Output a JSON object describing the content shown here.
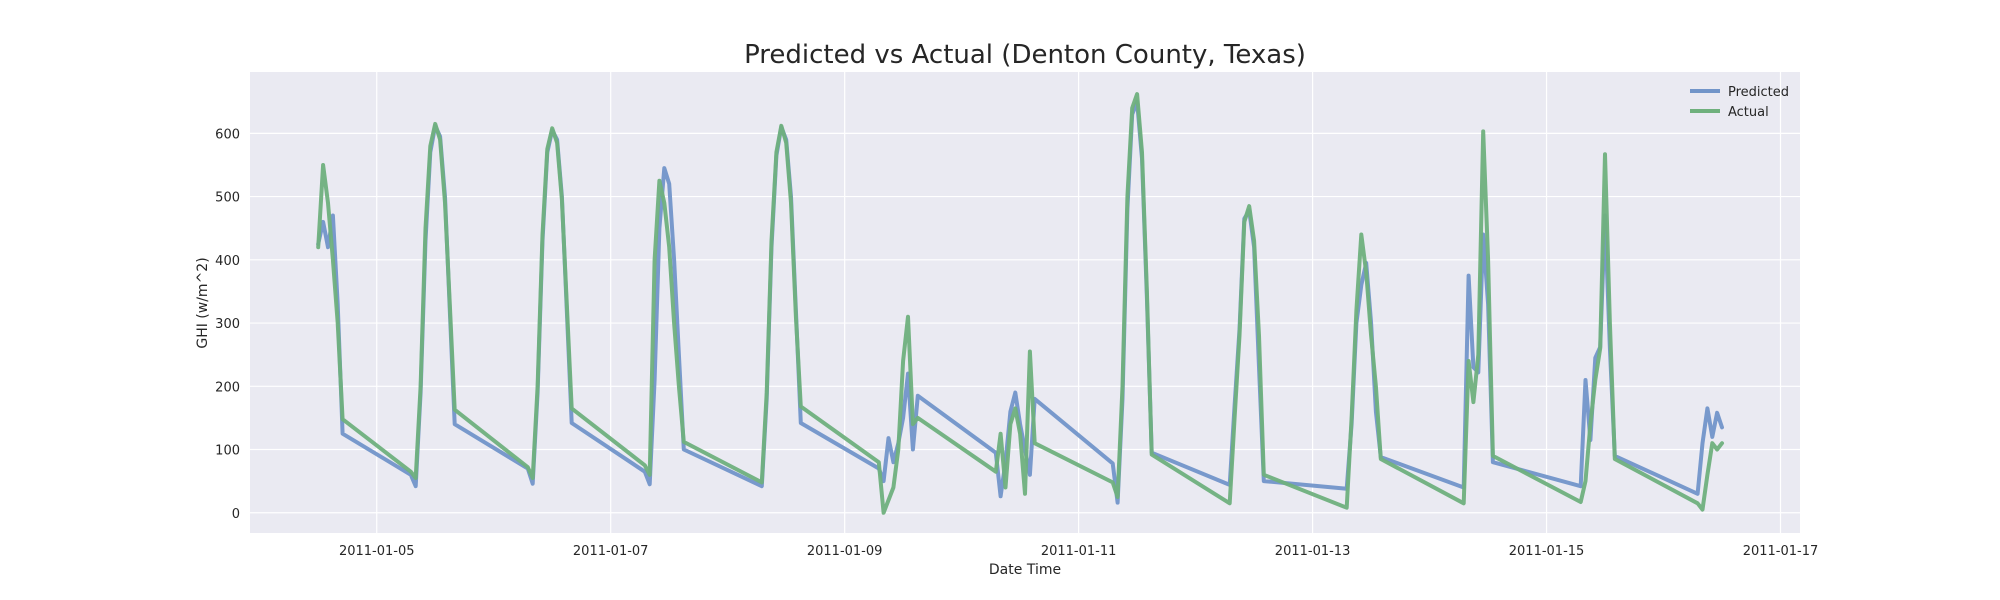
{
  "chart_data": {
    "type": "line",
    "title": "Predicted vs Actual (Denton County, Texas)",
    "xlabel": "Date Time",
    "ylabel": "GHI (w/m^2)",
    "xlim": [
      "2011-01-03 22:00",
      "2011-01-17 04:00"
    ],
    "ylim": [
      -32,
      697
    ],
    "x_ticks": [
      "2011-01-05",
      "2011-01-07",
      "2011-01-09",
      "2011-01-11",
      "2011-01-13",
      "2011-01-15",
      "2011-01-17"
    ],
    "y_ticks": [
      0,
      100,
      200,
      300,
      400,
      500,
      600
    ],
    "grid": true,
    "legend_position": "top-right",
    "series": [
      {
        "name": "Predicted",
        "color": "#7295c9",
        "points": [
          [
            "2011-01-04 12:00",
            425
          ],
          [
            "2011-01-04 13:00",
            460
          ],
          [
            "2011-01-04 14:00",
            420
          ],
          [
            "2011-01-04 15:00",
            470
          ],
          [
            "2011-01-04 16:00",
            330
          ],
          [
            "2011-01-04 17:00",
            125
          ],
          [
            "2011-01-05 07:00",
            60
          ],
          [
            "2011-01-05 08:00",
            42
          ],
          [
            "2011-01-05 09:00",
            190
          ],
          [
            "2011-01-05 10:00",
            430
          ],
          [
            "2011-01-05 11:00",
            570
          ],
          [
            "2011-01-05 12:00",
            612
          ],
          [
            "2011-01-05 13:00",
            595
          ],
          [
            "2011-01-05 14:00",
            500
          ],
          [
            "2011-01-05 15:00",
            320
          ],
          [
            "2011-01-05 16:00",
            140
          ],
          [
            "2011-01-06 07:00",
            70
          ],
          [
            "2011-01-06 08:00",
            46
          ],
          [
            "2011-01-06 09:00",
            190
          ],
          [
            "2011-01-06 10:00",
            430
          ],
          [
            "2011-01-06 11:00",
            570
          ],
          [
            "2011-01-06 12:00",
            605
          ],
          [
            "2011-01-06 13:00",
            590
          ],
          [
            "2011-01-06 14:00",
            500
          ],
          [
            "2011-01-06 15:00",
            320
          ],
          [
            "2011-01-06 16:00",
            142
          ],
          [
            "2011-01-07 07:00",
            65
          ],
          [
            "2011-01-07 08:00",
            45
          ],
          [
            "2011-01-07 09:00",
            210
          ],
          [
            "2011-01-07 10:00",
            450
          ],
          [
            "2011-01-07 11:00",
            545
          ],
          [
            "2011-01-07 12:00",
            520
          ],
          [
            "2011-01-07 13:00",
            400
          ],
          [
            "2011-01-07 14:00",
            250
          ],
          [
            "2011-01-07 15:00",
            100
          ],
          [
            "2011-01-08 07:00",
            42
          ],
          [
            "2011-01-08 08:00",
            180
          ],
          [
            "2011-01-08 09:00",
            420
          ],
          [
            "2011-01-08 10:00",
            565
          ],
          [
            "2011-01-08 11:00",
            610
          ],
          [
            "2011-01-08 12:00",
            590
          ],
          [
            "2011-01-08 13:00",
            500
          ],
          [
            "2011-01-08 14:00",
            320
          ],
          [
            "2011-01-08 15:00",
            142
          ],
          [
            "2011-01-09 07:00",
            70
          ],
          [
            "2011-01-09 08:00",
            50
          ],
          [
            "2011-01-09 09:00",
            118
          ],
          [
            "2011-01-09 10:00",
            80
          ],
          [
            "2011-01-09 11:00",
            110
          ],
          [
            "2011-01-09 12:00",
            150
          ],
          [
            "2011-01-09 13:00",
            220
          ],
          [
            "2011-01-09 14:00",
            100
          ],
          [
            "2011-01-09 15:00",
            185
          ],
          [
            "2011-01-10 07:00",
            95
          ],
          [
            "2011-01-10 08:00",
            26
          ],
          [
            "2011-01-10 09:00",
            80
          ],
          [
            "2011-01-10 10:00",
            160
          ],
          [
            "2011-01-10 11:00",
            190
          ],
          [
            "2011-01-10 12:00",
            140
          ],
          [
            "2011-01-10 13:00",
            100
          ],
          [
            "2011-01-10 14:00",
            60
          ],
          [
            "2011-01-10 15:00",
            180
          ],
          [
            "2011-01-11 07:00",
            78
          ],
          [
            "2011-01-11 08:00",
            16
          ],
          [
            "2011-01-11 09:00",
            180
          ],
          [
            "2011-01-11 10:00",
            480
          ],
          [
            "2011-01-11 11:00",
            630
          ],
          [
            "2011-01-11 12:00",
            650
          ],
          [
            "2011-01-11 13:00",
            560
          ],
          [
            "2011-01-11 14:00",
            340
          ],
          [
            "2011-01-11 15:00",
            95
          ],
          [
            "2011-01-12 07:00",
            44
          ],
          [
            "2011-01-12 08:00",
            170
          ],
          [
            "2011-01-12 09:00",
            290
          ],
          [
            "2011-01-12 10:00",
            465
          ],
          [
            "2011-01-12 11:00",
            478
          ],
          [
            "2011-01-12 12:00",
            420
          ],
          [
            "2011-01-12 13:00",
            230
          ],
          [
            "2011-01-12 14:00",
            50
          ],
          [
            "2011-01-13 07:00",
            38
          ],
          [
            "2011-01-13 08:00",
            140
          ],
          [
            "2011-01-13 09:00",
            300
          ],
          [
            "2011-01-13 10:00",
            360
          ],
          [
            "2011-01-13 11:00",
            395
          ],
          [
            "2011-01-13 12:00",
            300
          ],
          [
            "2011-01-13 13:00",
            160
          ],
          [
            "2011-01-13 14:00",
            88
          ],
          [
            "2011-01-14 07:00",
            40
          ],
          [
            "2011-01-14 08:00",
            375
          ],
          [
            "2011-01-14 09:00",
            230
          ],
          [
            "2011-01-14 10:00",
            222
          ],
          [
            "2011-01-14 11:00",
            440
          ],
          [
            "2011-01-14 12:00",
            330
          ],
          [
            "2011-01-14 13:00",
            80
          ],
          [
            "2011-01-15 07:00",
            42
          ],
          [
            "2011-01-15 08:00",
            210
          ],
          [
            "2011-01-15 09:00",
            115
          ],
          [
            "2011-01-15 10:00",
            245
          ],
          [
            "2011-01-15 11:00",
            262
          ],
          [
            "2011-01-15 12:00",
            470
          ],
          [
            "2011-01-15 13:00",
            260
          ],
          [
            "2011-01-15 14:00",
            90
          ],
          [
            "2011-01-16 07:00",
            30
          ],
          [
            "2011-01-16 08:00",
            110
          ],
          [
            "2011-01-16 09:00",
            165
          ],
          [
            "2011-01-16 10:00",
            120
          ],
          [
            "2011-01-16 11:00",
            158
          ],
          [
            "2011-01-16 12:00",
            135
          ]
        ]
      },
      {
        "name": "Actual",
        "color": "#6fb07d",
        "points": [
          [
            "2011-01-04 12:00",
            420
          ],
          [
            "2011-01-04 13:00",
            550
          ],
          [
            "2011-01-04 14:00",
            490
          ],
          [
            "2011-01-04 15:00",
            400
          ],
          [
            "2011-01-04 16:00",
            300
          ],
          [
            "2011-01-04 17:00",
            148
          ],
          [
            "2011-01-05 07:00",
            65
          ],
          [
            "2011-01-05 08:00",
            55
          ],
          [
            "2011-01-05 09:00",
            200
          ],
          [
            "2011-01-05 10:00",
            450
          ],
          [
            "2011-01-05 11:00",
            580
          ],
          [
            "2011-01-05 12:00",
            615
          ],
          [
            "2011-01-05 13:00",
            590
          ],
          [
            "2011-01-05 14:00",
            490
          ],
          [
            "2011-01-05 15:00",
            330
          ],
          [
            "2011-01-05 16:00",
            163
          ],
          [
            "2011-01-06 07:00",
            72
          ],
          [
            "2011-01-06 08:00",
            55
          ],
          [
            "2011-01-06 09:00",
            200
          ],
          [
            "2011-01-06 10:00",
            440
          ],
          [
            "2011-01-06 11:00",
            575
          ],
          [
            "2011-01-06 12:00",
            608
          ],
          [
            "2011-01-06 13:00",
            585
          ],
          [
            "2011-01-06 14:00",
            495
          ],
          [
            "2011-01-06 15:00",
            330
          ],
          [
            "2011-01-06 16:00",
            165
          ],
          [
            "2011-01-07 07:00",
            75
          ],
          [
            "2011-01-07 08:00",
            60
          ],
          [
            "2011-01-07 09:00",
            400
          ],
          [
            "2011-01-07 10:00",
            525
          ],
          [
            "2011-01-07 11:00",
            490
          ],
          [
            "2011-01-07 12:00",
            420
          ],
          [
            "2011-01-07 13:00",
            300
          ],
          [
            "2011-01-07 14:00",
            200
          ],
          [
            "2011-01-07 15:00",
            112
          ],
          [
            "2011-01-08 07:00",
            48
          ],
          [
            "2011-01-08 08:00",
            190
          ],
          [
            "2011-01-08 09:00",
            430
          ],
          [
            "2011-01-08 10:00",
            570
          ],
          [
            "2011-01-08 11:00",
            612
          ],
          [
            "2011-01-08 12:00",
            585
          ],
          [
            "2011-01-08 13:00",
            490
          ],
          [
            "2011-01-08 14:00",
            310
          ],
          [
            "2011-01-08 15:00",
            168
          ],
          [
            "2011-01-09 07:00",
            80
          ],
          [
            "2011-01-09 08:00",
            0
          ],
          [
            "2011-01-09 09:00",
            20
          ],
          [
            "2011-01-09 10:00",
            40
          ],
          [
            "2011-01-09 11:00",
            100
          ],
          [
            "2011-01-09 12:00",
            240
          ],
          [
            "2011-01-09 13:00",
            310
          ],
          [
            "2011-01-09 14:00",
            140
          ],
          [
            "2011-01-09 15:00",
            150
          ],
          [
            "2011-01-10 07:00",
            65
          ],
          [
            "2011-01-10 08:00",
            125
          ],
          [
            "2011-01-10 09:00",
            40
          ],
          [
            "2011-01-10 10:00",
            140
          ],
          [
            "2011-01-10 11:00",
            165
          ],
          [
            "2011-01-10 12:00",
            125
          ],
          [
            "2011-01-10 13:00",
            30
          ],
          [
            "2011-01-10 14:00",
            255
          ],
          [
            "2011-01-10 15:00",
            110
          ],
          [
            "2011-01-11 07:00",
            48
          ],
          [
            "2011-01-11 08:00",
            25
          ],
          [
            "2011-01-11 09:00",
            200
          ],
          [
            "2011-01-11 10:00",
            500
          ],
          [
            "2011-01-11 11:00",
            640
          ],
          [
            "2011-01-11 12:00",
            662
          ],
          [
            "2011-01-11 13:00",
            570
          ],
          [
            "2011-01-11 14:00",
            350
          ],
          [
            "2011-01-11 15:00",
            92
          ],
          [
            "2011-01-12 07:00",
            15
          ],
          [
            "2011-01-12 08:00",
            150
          ],
          [
            "2011-01-12 09:00",
            280
          ],
          [
            "2011-01-12 10:00",
            460
          ],
          [
            "2011-01-12 11:00",
            485
          ],
          [
            "2011-01-12 12:00",
            430
          ],
          [
            "2011-01-12 13:00",
            280
          ],
          [
            "2011-01-12 14:00",
            60
          ],
          [
            "2011-01-13 07:00",
            8
          ],
          [
            "2011-01-13 08:00",
            150
          ],
          [
            "2011-01-13 09:00",
            320
          ],
          [
            "2011-01-13 10:00",
            440
          ],
          [
            "2011-01-13 11:00",
            380
          ],
          [
            "2011-01-13 12:00",
            280
          ],
          [
            "2011-01-13 13:00",
            200
          ],
          [
            "2011-01-13 14:00",
            85
          ],
          [
            "2011-01-14 07:00",
            15
          ],
          [
            "2011-01-14 08:00",
            240
          ],
          [
            "2011-01-14 09:00",
            175
          ],
          [
            "2011-01-14 10:00",
            250
          ],
          [
            "2011-01-14 11:00",
            603
          ],
          [
            "2011-01-14 12:00",
            400
          ],
          [
            "2011-01-14 13:00",
            90
          ],
          [
            "2011-01-15 07:00",
            17
          ],
          [
            "2011-01-15 08:00",
            50
          ],
          [
            "2011-01-15 09:00",
            140
          ],
          [
            "2011-01-15 10:00",
            210
          ],
          [
            "2011-01-15 11:00",
            260
          ],
          [
            "2011-01-15 12:00",
            567
          ],
          [
            "2011-01-15 13:00",
            300
          ],
          [
            "2011-01-15 14:00",
            85
          ],
          [
            "2011-01-16 07:00",
            15
          ],
          [
            "2011-01-16 08:00",
            5
          ],
          [
            "2011-01-16 09:00",
            60
          ],
          [
            "2011-01-16 10:00",
            110
          ],
          [
            "2011-01-16 11:00",
            100
          ],
          [
            "2011-01-16 12:00",
            110
          ]
        ]
      }
    ]
  }
}
